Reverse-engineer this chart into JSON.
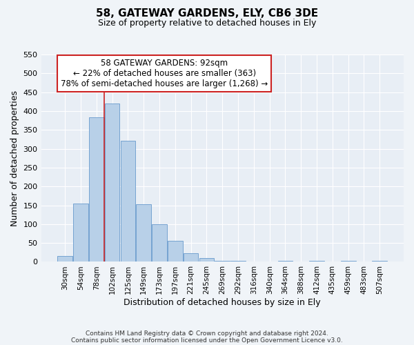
{
  "title": "58, GATEWAY GARDENS, ELY, CB6 3DE",
  "subtitle": "Size of property relative to detached houses in Ely",
  "xlabel": "Distribution of detached houses by size in Ely",
  "ylabel": "Number of detached properties",
  "categories": [
    "30sqm",
    "54sqm",
    "78sqm",
    "102sqm",
    "125sqm",
    "149sqm",
    "173sqm",
    "197sqm",
    "221sqm",
    "245sqm",
    "269sqm",
    "292sqm",
    "316sqm",
    "340sqm",
    "364sqm",
    "388sqm",
    "412sqm",
    "435sqm",
    "459sqm",
    "483sqm",
    "507sqm"
  ],
  "bar_heights": [
    15,
    155,
    383,
    420,
    322,
    153,
    100,
    55,
    22,
    10,
    2,
    2,
    0,
    0,
    2,
    0,
    2,
    0,
    2,
    0,
    2
  ],
  "bar_color": "#b8d0e8",
  "bar_edge_color": "#6699cc",
  "bg_color": "#e8eef5",
  "grid_color": "#ffffff",
  "vline_color": "#cc2222",
  "annotation_title": "58 GATEWAY GARDENS: 92sqm",
  "annotation_line1": "← 22% of detached houses are smaller (363)",
  "annotation_line2": "78% of semi-detached houses are larger (1,268) →",
  "annotation_box_color": "#ffffff",
  "annotation_box_edge": "#cc2222",
  "ylim": [
    0,
    550
  ],
  "yticks": [
    0,
    50,
    100,
    150,
    200,
    250,
    300,
    350,
    400,
    450,
    500,
    550
  ],
  "footnote1": "Contains HM Land Registry data © Crown copyright and database right 2024.",
  "footnote2": "Contains public sector information licensed under the Open Government Licence v3.0.",
  "title_fontsize": 11,
  "subtitle_fontsize": 9,
  "xlabel_fontsize": 9,
  "ylabel_fontsize": 9,
  "tick_fontsize": 8,
  "xtick_fontsize": 7.5,
  "annot_fontsize": 8.5,
  "footnote_fontsize": 6.5
}
